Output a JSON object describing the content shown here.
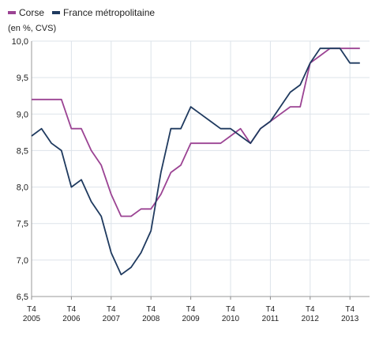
{
  "chart_data": {
    "type": "line",
    "unit_label": "(en %, CVS)",
    "ylim": [
      6.5,
      10.0
    ],
    "yticks": [
      "6,5",
      "7,0",
      "7,5",
      "8,0",
      "8,5",
      "9,0",
      "9,5",
      "10,0"
    ],
    "x_ticks": [
      {
        "top": "T4",
        "bottom": "2005",
        "index": 0
      },
      {
        "top": "T4",
        "bottom": "2006",
        "index": 4
      },
      {
        "top": "T4",
        "bottom": "2007",
        "index": 8
      },
      {
        "top": "T4",
        "bottom": "2008",
        "index": 12
      },
      {
        "top": "T4",
        "bottom": "2009",
        "index": 16
      },
      {
        "top": "T4",
        "bottom": "2010",
        "index": 20
      },
      {
        "top": "T4",
        "bottom": "2011",
        "index": 24
      },
      {
        "top": "T4",
        "bottom": "2012",
        "index": 28
      },
      {
        "top": "T4",
        "bottom": "2013",
        "index": 32
      }
    ],
    "grid": true,
    "legend_position": "top-left",
    "series": [
      {
        "name": "Corse",
        "color": "#9b4393",
        "values": [
          9.2,
          9.2,
          9.2,
          9.2,
          8.8,
          8.8,
          8.5,
          8.3,
          7.9,
          7.6,
          7.6,
          7.7,
          7.7,
          7.9,
          8.2,
          8.3,
          8.6,
          8.6,
          8.6,
          8.6,
          8.7,
          8.8,
          8.6,
          8.8,
          8.9,
          9.0,
          9.1,
          9.1,
          9.7,
          9.8,
          9.9,
          9.9,
          9.9,
          9.9
        ]
      },
      {
        "name": "France métropolitaine",
        "color": "#1f3a5f",
        "values": [
          8.7,
          8.8,
          8.6,
          8.5,
          8.0,
          8.1,
          7.8,
          7.6,
          7.1,
          6.8,
          6.9,
          7.1,
          7.4,
          8.2,
          8.8,
          8.8,
          9.1,
          9.0,
          8.9,
          8.8,
          8.8,
          8.7,
          8.6,
          8.8,
          8.9,
          9.1,
          9.3,
          9.4,
          9.7,
          9.9,
          9.9,
          9.9,
          9.7,
          9.7
        ]
      }
    ]
  }
}
